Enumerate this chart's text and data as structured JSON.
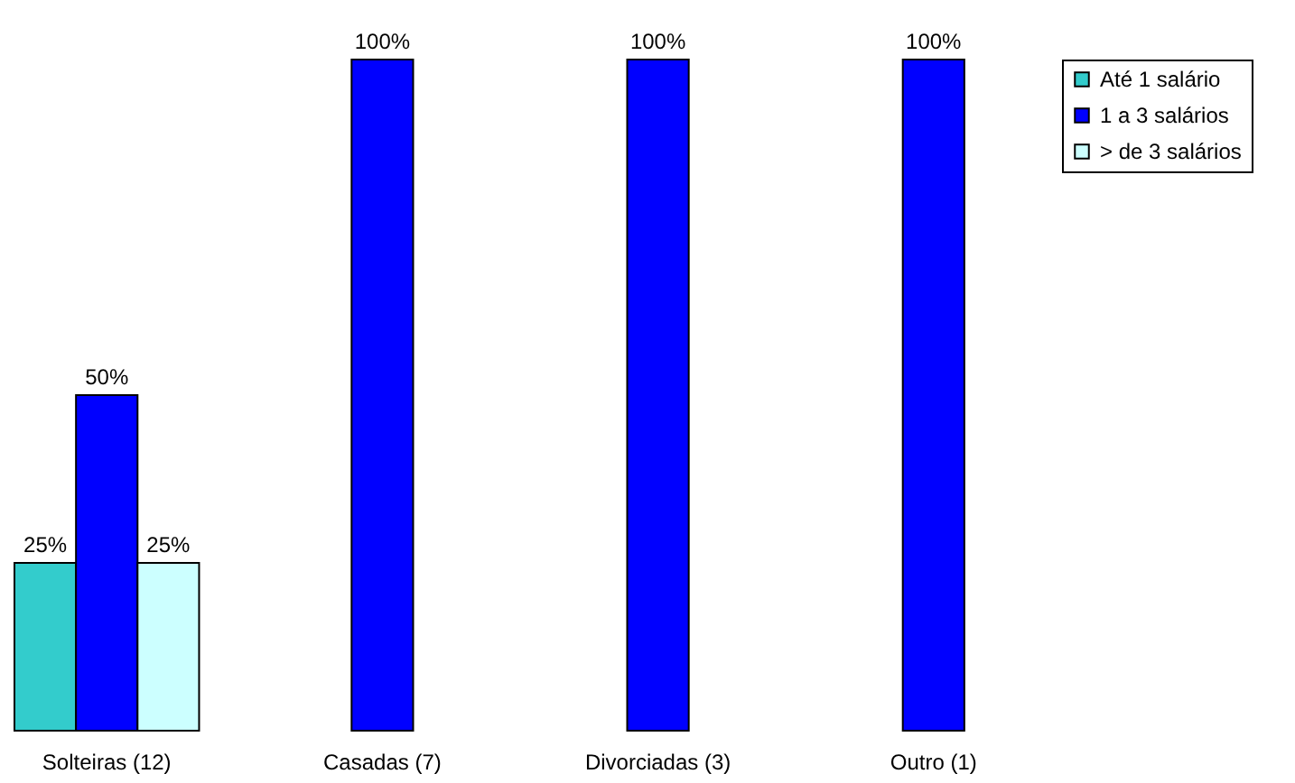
{
  "chart_data": {
    "type": "bar",
    "categories": [
      "Solteiras (12)",
      "Casadas (7)",
      "Divorciadas (3)",
      "Outro (1)"
    ],
    "series": [
      {
        "name": "Até 1 salário",
        "color": "#33cccc",
        "values": [
          25,
          null,
          null,
          null
        ],
        "value_labels": [
          "25%",
          null,
          null,
          null
        ]
      },
      {
        "name": "1 a 3 salários",
        "color": "#0000ff",
        "values": [
          50,
          100,
          100,
          100
        ],
        "value_labels": [
          "50%",
          "100%",
          "100%",
          "100%"
        ]
      },
      {
        "name": "> de 3 salários",
        "color": "#ccffff",
        "values": [
          25,
          null,
          null,
          null
        ],
        "value_labels": [
          "25%",
          null,
          null,
          null
        ]
      }
    ],
    "legend": "right"
  }
}
